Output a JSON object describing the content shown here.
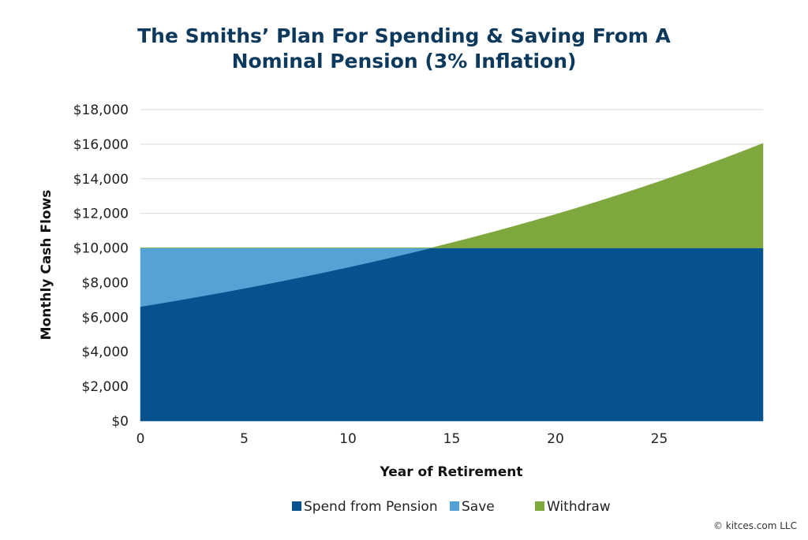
{
  "chart_data": {
    "type": "area",
    "stacked": true,
    "title": [
      "The Smiths’ Plan For Spending & Saving From A",
      "Nominal Pension (3% Inflation)"
    ],
    "xlabel": "Year of Retirement",
    "ylabel": "Monthly Cash Flows",
    "xlim": [
      0,
      30
    ],
    "ylim": [
      0,
      18000
    ],
    "x_ticks": [
      0,
      5,
      10,
      15,
      20,
      25
    ],
    "y_ticks": [
      "$0",
      "$2,000",
      "$4,000",
      "$6,000",
      "$8,000",
      "$10,000",
      "$12,000",
      "$14,000",
      "$16,000",
      "$18,000"
    ],
    "y_tick_values": [
      0,
      2000,
      4000,
      6000,
      8000,
      10000,
      12000,
      14000,
      16000,
      18000
    ],
    "grid": "horizontal",
    "legend_placement": "bottom",
    "x": [
      0,
      1,
      2,
      3,
      4,
      5,
      6,
      7,
      8,
      9,
      10,
      11,
      12,
      13,
      14,
      15,
      16,
      17,
      18,
      19,
      20,
      21,
      22,
      23,
      24,
      25,
      26,
      27,
      28,
      29,
      30
    ],
    "series": [
      {
        "name": "Spend from Pension",
        "color": "#06528f",
        "values": [
          6611,
          6809,
          7014,
          7224,
          7441,
          7664,
          7894,
          8131,
          8375,
          8626,
          8885,
          9151,
          9426,
          9709,
          10000,
          10000,
          10000,
          10000,
          10000,
          10000,
          10000,
          10000,
          10000,
          10000,
          10000,
          10000,
          10000,
          10000,
          10000,
          10000,
          10000
        ]
      },
      {
        "name": "Save",
        "color": "#55a3d6",
        "values": [
          3389,
          3191,
          2986,
          2776,
          2559,
          2336,
          2106,
          1869,
          1625,
          1374,
          1115,
          849,
          574,
          291,
          0,
          0,
          0,
          0,
          0,
          0,
          0,
          0,
          0,
          0,
          0,
          0,
          0,
          0,
          0,
          0,
          0
        ]
      },
      {
        "name": "Withdraw",
        "color": "#7ea83e",
        "values": [
          0,
          0,
          0,
          0,
          0,
          0,
          0,
          0,
          0,
          0,
          0,
          0,
          0,
          0,
          0,
          300,
          609,
          927,
          1255,
          1593,
          1940,
          2299,
          2668,
          3048,
          3439,
          3842,
          4258,
          4685,
          5126,
          5580,
          6047
        ]
      }
    ]
  },
  "footer": {
    "copyright": "© kitces.com LLC"
  }
}
